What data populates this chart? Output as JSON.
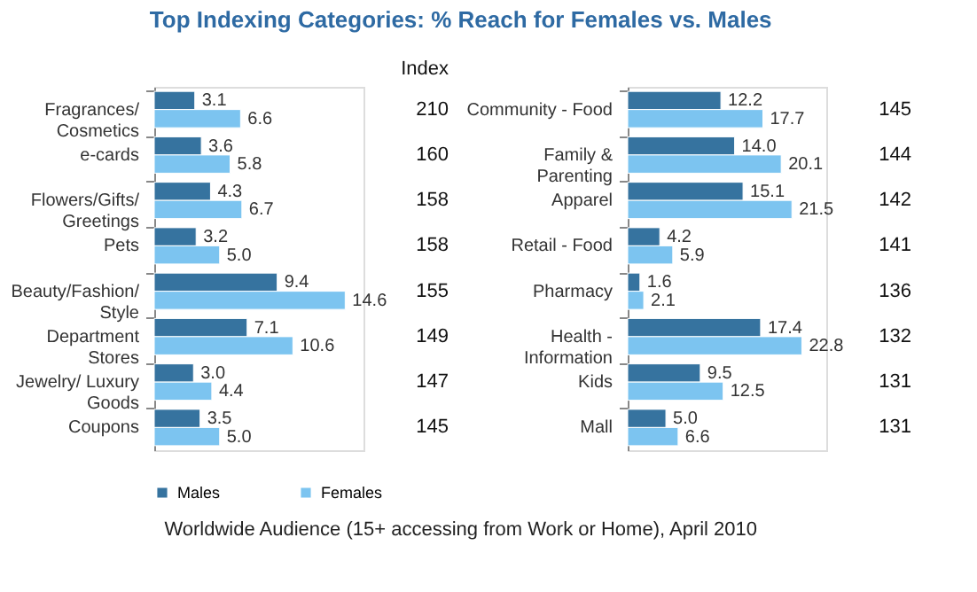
{
  "chart_data": [
    {
      "type": "bar",
      "orientation": "horizontal",
      "y2label": "Index",
      "title": "Top Indexing Categories: % Reach for Females vs. Males",
      "categories": [
        "Fragrances/\nCosmetics",
        "e-cards",
        "Flowers/Gifts/\nGreetings",
        "Pets",
        "Beauty/Fashion/\nStyle",
        "Department\nStores",
        "Jewelry/ Luxury\nGoods",
        "Coupons"
      ],
      "series": [
        {
          "name": "Males",
          "color": "#36739f",
          "values": [
            3.1,
            3.6,
            4.3,
            3.2,
            9.4,
            7.1,
            3.0,
            3.5
          ],
          "value_labels": [
            "3.1",
            "3.6",
            "4.3",
            "3.2",
            "9.4",
            "7.1",
            "3.0",
            "3.5"
          ]
        },
        {
          "name": "Females",
          "color": "#7cc4f0",
          "values": [
            6.6,
            5.8,
            6.7,
            5.0,
            14.6,
            10.6,
            4.4,
            5.0
          ],
          "value_labels": [
            "6.6",
            "5.8",
            "6.7",
            "5.0",
            "14.6",
            "10.6",
            "4.4",
            "5.0"
          ]
        }
      ],
      "xlim": [
        0,
        16
      ],
      "tick_labels": "y",
      "legend": "bottom",
      "annotations": [
        "210",
        "160",
        "158",
        "158",
        "155",
        "149",
        "147",
        "145",
        "Worldwide Audience (15+ accessing from Work or Home), April 2010"
      ]
    },
    {
      "type": "bar",
      "orientation": "horizontal",
      "categories": [
        "Community - Food",
        "Family &\nParenting",
        "Apparel",
        "Retail - Food",
        "Pharmacy",
        "Health -\nInformation",
        "Kids",
        "Mall"
      ],
      "series": [
        {
          "name": "Males",
          "color": "#36739f",
          "values": [
            12.2,
            14.0,
            15.1,
            4.2,
            1.6,
            17.4,
            9.5,
            5.0
          ],
          "value_labels": [
            "12.2",
            "14.0",
            "15.1",
            "4.2",
            "1.6",
            "17.4",
            "9.5",
            "5.0"
          ]
        },
        {
          "name": "Females",
          "color": "#7cc4f0",
          "values": [
            17.7,
            20.1,
            21.5,
            5.9,
            2.1,
            22.8,
            12.5,
            6.6
          ],
          "value_labels": [
            "17.7",
            "20.1",
            "21.5",
            "5.9",
            "2.1",
            "22.8",
            "12.5",
            "6.6"
          ]
        }
      ],
      "xlim": [
        0,
        26
      ],
      "tick_labels": "y",
      "legend": "bottom",
      "annotations": [
        "145",
        "144",
        "142",
        "141",
        "136",
        "132",
        "131",
        "131"
      ]
    }
  ]
}
